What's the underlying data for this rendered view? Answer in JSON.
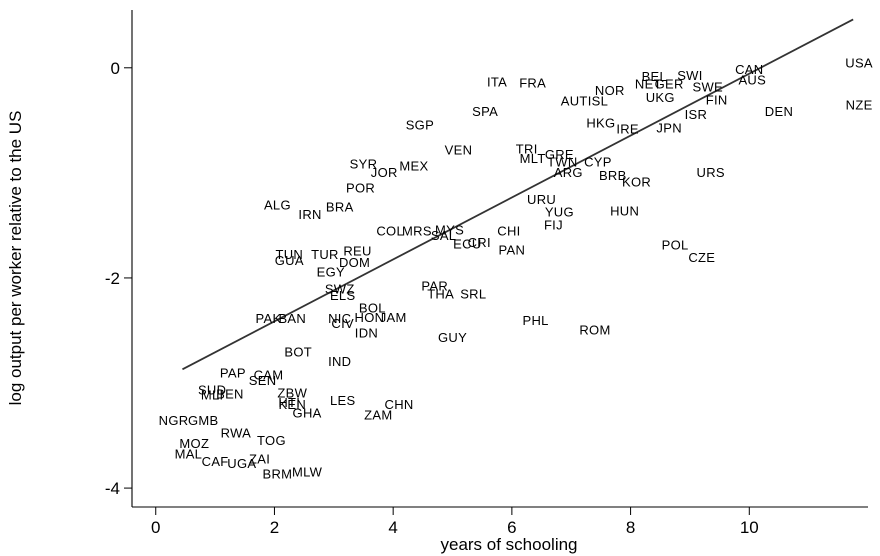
{
  "chart_data": {
    "type": "scatter",
    "xlabel": "years of schooling",
    "ylabel": "log output per worker relative to the US",
    "xlim": [
      -0.4,
      12.0
    ],
    "ylim": [
      -4.18,
      0.55
    ],
    "xticks": [
      0,
      2,
      4,
      6,
      8,
      10
    ],
    "yticks": [
      0,
      -2,
      -4
    ],
    "fit_line": {
      "x": [
        0.45,
        11.75
      ],
      "y": [
        -2.87,
        0.46
      ]
    },
    "points": [
      {
        "label": "USA",
        "x": 11.85,
        "y": 0.05
      },
      {
        "label": "CAN",
        "x": 10.0,
        "y": -0.01
      },
      {
        "label": "NZE",
        "x": 11.85,
        "y": -0.35
      },
      {
        "label": "AUS",
        "x": 10.05,
        "y": -0.11
      },
      {
        "label": "SWI",
        "x": 9.0,
        "y": -0.07
      },
      {
        "label": "DEN",
        "x": 10.5,
        "y": -0.41
      },
      {
        "label": "SWE",
        "x": 9.3,
        "y": -0.18
      },
      {
        "label": "FIN",
        "x": 9.45,
        "y": -0.3
      },
      {
        "label": "ISR",
        "x": 9.1,
        "y": -0.44
      },
      {
        "label": "BEL",
        "x": 8.4,
        "y": -0.08
      },
      {
        "label": "NOR",
        "x": 7.65,
        "y": -0.21
      },
      {
        "label": "NET",
        "x": 8.3,
        "y": -0.15
      },
      {
        "label": "GER",
        "x": 8.65,
        "y": -0.15
      },
      {
        "label": "UKG",
        "x": 8.5,
        "y": -0.28
      },
      {
        "label": "JPN",
        "x": 8.65,
        "y": -0.57
      },
      {
        "label": "IRE",
        "x": 7.95,
        "y": -0.58
      },
      {
        "label": "HKG",
        "x": 7.5,
        "y": -0.52
      },
      {
        "label": "AUT",
        "x": 7.05,
        "y": -0.31
      },
      {
        "label": "ISL",
        "x": 7.45,
        "y": -0.31
      },
      {
        "label": "ITA",
        "x": 5.75,
        "y": -0.13
      },
      {
        "label": "FRA",
        "x": 6.35,
        "y": -0.14
      },
      {
        "label": "SPA",
        "x": 5.55,
        "y": -0.41
      },
      {
        "label": "SGP",
        "x": 4.45,
        "y": -0.54
      },
      {
        "label": "VEN",
        "x": 5.1,
        "y": -0.78
      },
      {
        "label": "TRI",
        "x": 6.25,
        "y": -0.77
      },
      {
        "label": "MLT",
        "x": 6.35,
        "y": -0.86
      },
      {
        "label": "TWN",
        "x": 6.85,
        "y": -0.89
      },
      {
        "label": "GRE",
        "x": 6.8,
        "y": -0.82
      },
      {
        "label": "CYP",
        "x": 7.45,
        "y": -0.89
      },
      {
        "label": "ARG",
        "x": 6.95,
        "y": -0.99
      },
      {
        "label": "BRB",
        "x": 7.7,
        "y": -1.02
      },
      {
        "label": "KOR",
        "x": 8.1,
        "y": -1.08
      },
      {
        "label": "URS",
        "x": 9.35,
        "y": -0.99
      },
      {
        "label": "SYR",
        "x": 3.5,
        "y": -0.91
      },
      {
        "label": "MEX",
        "x": 4.35,
        "y": -0.93
      },
      {
        "label": "JOR",
        "x": 3.85,
        "y": -0.99
      },
      {
        "label": "POR",
        "x": 3.45,
        "y": -1.14
      },
      {
        "label": "ALG",
        "x": 2.05,
        "y": -1.3
      },
      {
        "label": "IRN",
        "x": 2.6,
        "y": -1.39
      },
      {
        "label": "BRA",
        "x": 3.1,
        "y": -1.32
      },
      {
        "label": "URU",
        "x": 6.5,
        "y": -1.25
      },
      {
        "label": "YUG",
        "x": 6.8,
        "y": -1.37
      },
      {
        "label": "FIJ",
        "x": 6.7,
        "y": -1.49
      },
      {
        "label": "HUN",
        "x": 7.9,
        "y": -1.36
      },
      {
        "label": "COL",
        "x": 3.95,
        "y": -1.55
      },
      {
        "label": "MRS",
        "x": 4.4,
        "y": -1.55
      },
      {
        "label": "MYS",
        "x": 4.95,
        "y": -1.54
      },
      {
        "label": "SAL",
        "x": 4.85,
        "y": -1.59
      },
      {
        "label": "ECU",
        "x": 5.25,
        "y": -1.67
      },
      {
        "label": "CRI",
        "x": 5.45,
        "y": -1.66
      },
      {
        "label": "CHI",
        "x": 5.95,
        "y": -1.55
      },
      {
        "label": "PAN",
        "x": 6.0,
        "y": -1.73
      },
      {
        "label": "POL",
        "x": 8.75,
        "y": -1.68
      },
      {
        "label": "CZE",
        "x": 9.2,
        "y": -1.8
      },
      {
        "label": "TUN",
        "x": 2.25,
        "y": -1.77
      },
      {
        "label": "TUR",
        "x": 2.85,
        "y": -1.77
      },
      {
        "label": "REU",
        "x": 3.4,
        "y": -1.74
      },
      {
        "label": "GUA",
        "x": 2.25,
        "y": -1.83
      },
      {
        "label": "DOM",
        "x": 3.35,
        "y": -1.85
      },
      {
        "label": "EGY",
        "x": 2.95,
        "y": -1.94
      },
      {
        "label": "SWZ",
        "x": 3.1,
        "y": -2.1
      },
      {
        "label": "ELS",
        "x": 3.15,
        "y": -2.16
      },
      {
        "label": "PAR",
        "x": 4.7,
        "y": -2.07
      },
      {
        "label": "THA",
        "x": 4.8,
        "y": -2.15
      },
      {
        "label": "SRL",
        "x": 5.35,
        "y": -2.15
      },
      {
        "label": "BOL",
        "x": 3.65,
        "y": -2.28
      },
      {
        "label": "PAK",
        "x": 1.9,
        "y": -2.38
      },
      {
        "label": "BAN",
        "x": 2.3,
        "y": -2.38
      },
      {
        "label": "NIC",
        "x": 3.1,
        "y": -2.38
      },
      {
        "label": "HON",
        "x": 3.6,
        "y": -2.37
      },
      {
        "label": "JAM",
        "x": 4.0,
        "y": -2.37
      },
      {
        "label": "CIV",
        "x": 3.15,
        "y": -2.43
      },
      {
        "label": "PHL",
        "x": 6.4,
        "y": -2.4
      },
      {
        "label": "ROM",
        "x": 7.4,
        "y": -2.49
      },
      {
        "label": "IDN",
        "x": 3.55,
        "y": -2.52
      },
      {
        "label": "GUY",
        "x": 5.0,
        "y": -2.56
      },
      {
        "label": "BOT",
        "x": 2.4,
        "y": -2.7
      },
      {
        "label": "IND",
        "x": 3.1,
        "y": -2.79
      },
      {
        "label": "PAP",
        "x": 1.3,
        "y": -2.9
      },
      {
        "label": "CAM",
        "x": 1.9,
        "y": -2.92
      },
      {
        "label": "SEN",
        "x": 1.8,
        "y": -2.97
      },
      {
        "label": "SUD",
        "x": 0.95,
        "y": -3.06
      },
      {
        "label": "BEN",
        "x": 1.25,
        "y": -3.1
      },
      {
        "label": "MLI",
        "x": 0.95,
        "y": -3.11
      },
      {
        "label": "ZBW",
        "x": 2.3,
        "y": -3.09
      },
      {
        "label": "LES",
        "x": 3.15,
        "y": -3.16
      },
      {
        "label": "CHN",
        "x": 4.1,
        "y": -3.2
      },
      {
        "label": "KEN",
        "x": 2.3,
        "y": -3.2
      },
      {
        "label": "HTI",
        "x": 2.25,
        "y": -3.18
      },
      {
        "label": "GHA",
        "x": 2.55,
        "y": -3.28
      },
      {
        "label": "ZAM",
        "x": 3.75,
        "y": -3.3
      },
      {
        "label": "NGR",
        "x": 0.3,
        "y": -3.35
      },
      {
        "label": "GMB",
        "x": 0.8,
        "y": -3.35
      },
      {
        "label": "RWA",
        "x": 1.35,
        "y": -3.47
      },
      {
        "label": "TOG",
        "x": 1.95,
        "y": -3.54
      },
      {
        "label": "MOZ",
        "x": 0.65,
        "y": -3.57
      },
      {
        "label": "MAL",
        "x": 0.55,
        "y": -3.67
      },
      {
        "label": "CAF",
        "x": 1.0,
        "y": -3.74
      },
      {
        "label": "ZAI",
        "x": 1.75,
        "y": -3.72
      },
      {
        "label": "UGA",
        "x": 1.45,
        "y": -3.76
      },
      {
        "label": "MLW",
        "x": 2.55,
        "y": -3.84
      },
      {
        "label": "BRM",
        "x": 2.05,
        "y": -3.86
      }
    ]
  }
}
